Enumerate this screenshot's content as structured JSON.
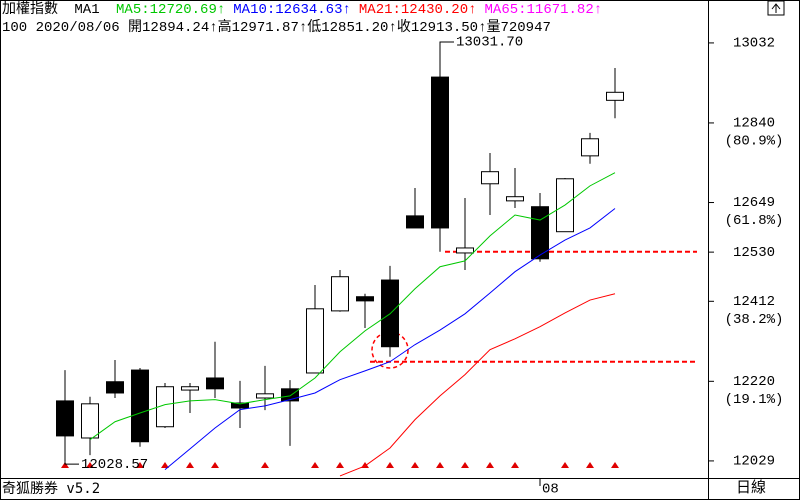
{
  "chart_data": {
    "type": "candlestick",
    "title": "加權指數",
    "indicator": "MA1",
    "quote_line": "100 2020/08/06 開12894.24↑高12971.87↑低12851.20↑收12913.50↑量720947",
    "app_name": "奇狐勝券 v5.2",
    "period": "日線",
    "categories": [
      null,
      null,
      null,
      null,
      null,
      null,
      null,
      null,
      null,
      null,
      null,
      null,
      null,
      null,
      null,
      null,
      null,
      null,
      null,
      "08",
      null,
      null,
      null
    ],
    "open": [
      12173,
      12084,
      12219,
      12247,
      12111,
      12199,
      12228,
      12168,
      12180,
      12202,
      12240,
      12389,
      12423,
      12463,
      12617,
      12950,
      12528,
      12694,
      12653,
      12639,
      12579,
      12761,
      12894.24
    ],
    "high": [
      12247,
      12183,
      12271,
      12252,
      12216,
      12216,
      12315,
      12221,
      12257,
      12223,
      12451,
      12487,
      12430,
      12497,
      12684,
      13031.7,
      12660,
      12768,
      12732,
      12672,
      12708,
      12816,
      12971.87
    ],
    "low": [
      12028.57,
      12043,
      12180,
      12063,
      12108,
      12144,
      12180,
      12108,
      12151,
      12065,
      12240,
      12387,
      12348,
      12279,
      12588,
      12531,
      12487,
      12619,
      12636,
      12507,
      12579,
      12742,
      12851.2
    ],
    "close": [
      12089,
      12166,
      12192,
      12075,
      12207,
      12207,
      12202,
      12156,
      12190,
      12173,
      12394,
      12471,
      12413,
      12303,
      12588,
      12588,
      12540,
      12723,
      12663,
      12514,
      12706,
      12802,
      12913.5
    ],
    "signals": [
      true,
      true,
      false,
      true,
      true,
      true,
      true,
      false,
      true,
      false,
      true,
      true,
      true,
      true,
      true,
      true,
      true,
      true,
      true,
      false,
      true,
      true,
      true
    ],
    "signal_color": "#e00000",
    "series": [
      {
        "name": "MA5",
        "value_label": ":12720.69↑",
        "color": "#00c800",
        "values": [
          null,
          12080,
          12123,
          12144,
          12164,
          12173,
          12176,
          12166,
          12176,
          12185,
          12228,
          12291,
          12341,
          12382,
          12442,
          12495,
          12509,
          12569,
          12619,
          12607,
          12643,
          12689,
          12720.69
        ]
      },
      {
        "name": "MA10",
        "value_label": ":12634.63↑",
        "color": "#0000ff",
        "values": [
          null,
          null,
          null,
          null,
          12008,
          12058,
          12108,
          12152,
          12161,
          12176,
          12192,
          12224,
          12245,
          12267,
          12308,
          12343,
          12382,
          12432,
          12483,
          12523,
          12559,
          12588,
          12634.63
        ]
      },
      {
        "name": "MA21",
        "value_label": ":12430.20↑",
        "color": "#ff0000",
        "values": [
          null,
          null,
          null,
          null,
          null,
          null,
          null,
          null,
          null,
          null,
          null,
          11993,
          12017,
          12060,
          12128,
          12185,
          12236,
          12296,
          12322,
          12351,
          12384,
          12415,
          12430.2
        ]
      },
      {
        "name": "MA65",
        "value_label": ":11671.82↑",
        "color": "#ff00ff",
        "values": [
          null,
          null,
          null,
          null,
          null,
          null,
          null,
          null,
          null,
          null,
          null,
          null,
          null,
          null,
          null,
          null,
          null,
          null,
          null,
          null,
          null,
          null,
          null
        ]
      }
    ],
    "annotations": [
      {
        "text": "13031.70",
        "index": 15,
        "field": "high"
      },
      {
        "text": "12028.57",
        "index": 0,
        "field": "low"
      }
    ],
    "support_lines": [
      {
        "value": 12531,
        "from": 16,
        "color": "#ff0000"
      },
      {
        "value": 12267,
        "from": 13,
        "color": "#ff0000"
      }
    ],
    "ylim": [
      11988,
      13051
    ],
    "yticks": [
      13032,
      12840,
      12649,
      12530,
      12412,
      12220,
      12029
    ],
    "retracement_labels": [
      {
        "value": 12840,
        "label": "(80.9%)"
      },
      {
        "value": 12649,
        "label": "(61.8%)"
      },
      {
        "value": 12412,
        "label": "(38.2%)"
      },
      {
        "value": 12220,
        "label": "(19.1%)"
      }
    ]
  }
}
